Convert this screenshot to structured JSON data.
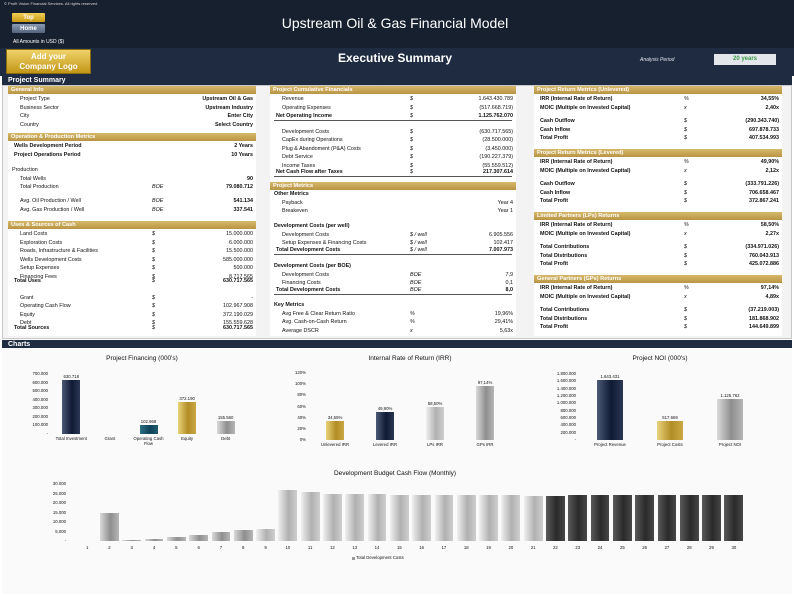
{
  "header": {
    "copyright": "© Profit Vision Financial Services. All rights reserved.",
    "top_button": "Top",
    "home_button": "Home",
    "title": "Upstream Oil & Gas Financial Model",
    "amounts": "All Amounts in  USD ($)"
  },
  "band": {
    "logo_line1": "Add your",
    "logo_line2": "Company Logo",
    "title": "Executive Summary",
    "analysis_period_label": "Analysis Period",
    "analysis_period_value": "20 years"
  },
  "sections": {
    "summary": "Project Summary",
    "charts": "Charts"
  },
  "colors": {
    "navy": "#1f2b40",
    "gold": "#c9a84f",
    "green": "#3a9a45"
  },
  "col1": {
    "general_info": {
      "header": "General Info",
      "rows": [
        {
          "label": "Project Type",
          "value": "Upstream Oil & Gas"
        },
        {
          "label": "Business Sector",
          "value": "Upstream Industry"
        },
        {
          "label": "City",
          "value": "Enter City"
        },
        {
          "label": "Country",
          "value": "Select Country"
        }
      ]
    },
    "operation": {
      "header": "Operation & Production Metrics",
      "rows": [
        {
          "label": "Wells Development Period",
          "value": "2 Years"
        },
        {
          "label": "Project Operations Period",
          "value": "10 Years"
        }
      ],
      "production_label": "Production",
      "production_rows": [
        {
          "label": "Total Wells",
          "unit": "",
          "value": "90"
        },
        {
          "label": "Total Production",
          "unit": "BOE",
          "value": "79.080.712"
        },
        {
          "label": "Avg. Oil Production / Well",
          "unit": "BOE",
          "value": "541.134"
        },
        {
          "label": "Avg. Gas Production / Well",
          "unit": "BOE",
          "value": "337.541"
        }
      ]
    },
    "uses": {
      "header": "Uses & Sources of Cash",
      "rows": [
        {
          "label": "Land Costs",
          "unit": "$",
          "value": "15.000.000"
        },
        {
          "label": "Exploration Costs",
          "unit": "$",
          "value": "6.000.000"
        },
        {
          "label": "Roads, Infrastructure & Facilities",
          "unit": "$",
          "value": "15.500.000"
        },
        {
          "label": "Wells Development Costs",
          "unit": "$",
          "value": "585.000.000"
        },
        {
          "label": "Setup Expenses",
          "unit": "$",
          "value": "500.000"
        },
        {
          "label": "Financing Fees",
          "unit": "$",
          "value": "8.717.565"
        }
      ],
      "total": {
        "label": "Total Uses",
        "unit": "$",
        "value": "630.717.565"
      },
      "sources": [
        {
          "label": "Grant",
          "unit": "$",
          "value": "-"
        },
        {
          "label": "Operating Cash Flow",
          "unit": "$",
          "value": "102.967.908"
        },
        {
          "label": "Equity",
          "unit": "$",
          "value": "372.190.029"
        },
        {
          "label": "Debt",
          "unit": "$",
          "value": "155.559.628"
        }
      ],
      "sources_total": {
        "label": "Total Sources",
        "unit": "$",
        "value": "630.717.565"
      }
    }
  },
  "col2": {
    "cumulative": {
      "header": "Project Cumulative Financials",
      "rows": [
        {
          "label": "Revenue",
          "unit": "$",
          "value": "1.643.430.789"
        },
        {
          "label": "Operating Expenses",
          "unit": "$",
          "value": "(517.668.719)"
        }
      ],
      "noi": {
        "label": "Net Operating Income",
        "unit": "$",
        "value": "1.125.762.070"
      },
      "rows2": [
        {
          "label": "Development Costs",
          "unit": "$",
          "value": "(630.717.565)"
        },
        {
          "label": "CapEx during Operations",
          "unit": "$",
          "value": "(28.500.000)"
        },
        {
          "label": "Plug & Abandoment (P&A) Costs",
          "unit": "$",
          "value": "(3.450.000)"
        },
        {
          "label": "Debt Service",
          "unit": "$",
          "value": "(190.227.379)"
        },
        {
          "label": "Income Taxes",
          "unit": "$",
          "value": "(55.559.512)"
        }
      ],
      "ncf": {
        "label": "Net Cash Flow after Taxes",
        "unit": "$",
        "value": "217.307.614"
      }
    },
    "metrics": {
      "header": "Project Metrics",
      "other_label": "Other Metrics",
      "other_rows": [
        {
          "label": "Payback",
          "value": "Year 4"
        },
        {
          "label": "Breakeven",
          "value": "Year 1"
        }
      ],
      "dev_well_label": "Development Costs (per well)",
      "dev_well_rows": [
        {
          "label": "Development Costs",
          "unit": "$ / well",
          "value": "6.905.556"
        },
        {
          "label": "Setup Expenses & Financing Costs",
          "unit": "$ / well",
          "value": "102.417"
        }
      ],
      "dev_well_total": {
        "label": "Total Development Costs",
        "unit": "$ / well",
        "value": "7.007.973"
      },
      "dev_boe_label": "Development Costs (per BOE)",
      "dev_boe_rows": [
        {
          "label": "Development Costs",
          "unit": "BOE",
          "value": "7,9"
        },
        {
          "label": "Financing Costs",
          "unit": "BOE",
          "value": "0,1"
        }
      ],
      "dev_boe_total": {
        "label": "Total Development Costs",
        "unit": "BOE",
        "value": "8,0"
      },
      "key_label": "Key Metrics",
      "key_rows": [
        {
          "label": "Avg Free & Clear Return Ratio",
          "unit": "%",
          "value": "19,96%"
        },
        {
          "label": "Avg. Cash-on-Cash Return",
          "unit": "%",
          "value": "29,41%"
        },
        {
          "label": "Average DSCR",
          "unit": "x",
          "value": "5,63x"
        }
      ]
    }
  },
  "col3": {
    "unlevered": {
      "header": "Project Return Metrics (Unlevered)",
      "rows": [
        {
          "label": "IRR (Internal Rate of Return)",
          "unit": "%",
          "value": "34,55%"
        },
        {
          "label": "MOIC (Multiple on Invested Capital)",
          "unit": "x",
          "value": "2,40x"
        }
      ],
      "rows2": [
        {
          "label": "Cash Outflow",
          "unit": "$",
          "value": "(290.343.740)"
        },
        {
          "label": "Cash Inflow",
          "unit": "$",
          "value": "697.878.733"
        },
        {
          "label": "Total Profit",
          "unit": "$",
          "value": "407.534.993"
        }
      ]
    },
    "levered": {
      "header": "Project Return Metrics (Levered)",
      "rows": [
        {
          "label": "IRR (Internal Rate of Return)",
          "unit": "%",
          "value": "49,90%"
        },
        {
          "label": "MOIC (Multiple on Invested Capital)",
          "unit": "x",
          "value": "2,12x"
        }
      ],
      "rows2": [
        {
          "label": "Cash Outflow",
          "unit": "$",
          "value": "(333.791.226)"
        },
        {
          "label": "Cash Inflow",
          "unit": "$",
          "value": "706.658.467"
        },
        {
          "label": "Total Profit",
          "unit": "$",
          "value": "372.867.241"
        }
      ]
    },
    "lps": {
      "header": "Limited Partners (LPs) Returns",
      "rows": [
        {
          "label": "IRR (Internal Rate of Return)",
          "unit": "%",
          "value": "58,50%"
        },
        {
          "label": "MOIC (Multiple on Invested Capital)",
          "unit": "x",
          "value": "2,27x"
        }
      ],
      "rows2": [
        {
          "label": "Total Contributions",
          "unit": "$",
          "value": "(334.971.026)"
        },
        {
          "label": "Total Distributions",
          "unit": "$",
          "value": "760.043.913"
        },
        {
          "label": "Total Profit",
          "unit": "$",
          "value": "425.072.886"
        }
      ]
    },
    "gps": {
      "header": "General Partners (GPs) Returns",
      "rows": [
        {
          "label": "IRR (Internal Rate of Return)",
          "unit": "%",
          "value": "97,14%"
        },
        {
          "label": "MOIC (Multiple on Invested Capital)",
          "unit": "x",
          "value": "4,89x"
        }
      ],
      "rows2": [
        {
          "label": "Total Contributions",
          "unit": "$",
          "value": "(37.219.003)"
        },
        {
          "label": "Total Distributions",
          "unit": "$",
          "value": "181.868.902"
        },
        {
          "label": "Total Profit",
          "unit": "$",
          "value": "144.649.899"
        }
      ]
    }
  },
  "chart_data": [
    {
      "type": "bar",
      "title": "Project Financing (000's)",
      "categories": [
        "Total Investment",
        "Grant",
        "Operating Cash Flow",
        "Equity",
        "Debt"
      ],
      "values": [
        630718,
        0,
        102968,
        372190,
        155560
      ],
      "data_labels": [
        "630.718",
        "",
        "102.968",
        "372.190",
        "155.560"
      ],
      "yticks": [
        "700.000",
        "600.000",
        "500.000",
        "400.000",
        "300.000",
        "200.000",
        "100.000",
        "-"
      ],
      "ylim": [
        0,
        700000
      ]
    },
    {
      "type": "bar",
      "title": "Internal Rate of Return (IRR)",
      "categories": [
        "Unlevered IRR",
        "Levered IRR",
        "LPs IRR",
        "GPs IRR"
      ],
      "values": [
        34.55,
        49.9,
        58.5,
        97.14
      ],
      "data_labels": [
        "34,55%",
        "49,90%",
        "58,50%",
        "97,14%"
      ],
      "yticks": [
        "120%",
        "100%",
        "80%",
        "60%",
        "40%",
        "20%",
        "0%"
      ],
      "ylim": [
        0,
        120
      ]
    },
    {
      "type": "bar",
      "title": "Project NOI (000's)",
      "categories": [
        "Project Revenue",
        "Project Costs",
        "Project NOI"
      ],
      "values": [
        1643431,
        517669,
        1125762
      ],
      "data_labels": [
        "1.643.431",
        "517.669",
        "1.125.762"
      ],
      "yticks": [
        "1.800.000",
        "1.600.000",
        "1.400.000",
        "1.200.000",
        "1.000.000",
        "800.000",
        "600.000",
        "400.000",
        "200.000",
        "-"
      ],
      "ylim": [
        0,
        1800000
      ]
    },
    {
      "type": "bar",
      "title": "Development Budget Cash Flow (Monthly)",
      "categories": [
        "1",
        "2",
        "3",
        "4",
        "5",
        "6",
        "7",
        "8",
        "9",
        "10",
        "11",
        "12",
        "13",
        "14",
        "15",
        "16",
        "17",
        "18",
        "19",
        "20",
        "21",
        "22",
        "23",
        "24",
        "25",
        "26",
        "27",
        "28",
        "29",
        "30"
      ],
      "series": [
        {
          "name": "Total Development Costs",
          "values": [
            0,
            15000,
            500,
            1000,
            2000,
            3000,
            4500,
            6000,
            6500,
            27000,
            26000,
            25000,
            25000,
            24500,
            24000,
            24000,
            24000,
            24000,
            24000,
            24000,
            23500,
            23500,
            24000,
            24000,
            24000,
            24000,
            24000,
            24000,
            24000,
            24000
          ]
        }
      ],
      "yticks": [
        "30.000",
        "25.000",
        "20.000",
        "15.000",
        "10.000",
        "5.000",
        "-"
      ],
      "ylim": [
        0,
        30000
      ]
    }
  ]
}
